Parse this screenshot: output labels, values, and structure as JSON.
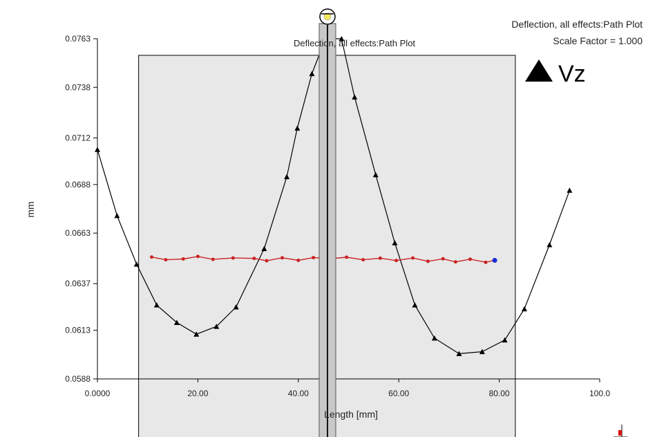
{
  "header": {
    "line1": "Deflection, all effects:Path Plot",
    "line2": "Scale Factor = 1.000"
  },
  "inner_title": "Deflection, all effects:Path Plot",
  "legend": {
    "label": "Vz"
  },
  "colors": {
    "series_main": "#000000",
    "series_path": "#cc2222",
    "path_end_marker": "#1a2bd6",
    "highlight_band": "#e8e8e8"
  },
  "chart_data": {
    "type": "line",
    "xlabel": "Length [mm]",
    "ylabel": "mm",
    "xlim": [
      0,
      100
    ],
    "ylim": [
      0.0588,
      0.0763
    ],
    "x_ticks": [
      "0.0000",
      "20.00",
      "40.00",
      "60.00",
      "80.00",
      "100.0"
    ],
    "x_tick_values": [
      0,
      20,
      40,
      60,
      80,
      100
    ],
    "y_ticks": [
      "0.0588",
      "0.0613",
      "0.0637",
      "0.0663",
      "0.0688",
      "0.0712",
      "0.0738",
      "0.0763"
    ],
    "y_tick_values": [
      0.0588,
      0.0613,
      0.0637,
      0.0663,
      0.0688,
      0.0712,
      0.0738,
      0.0763
    ],
    "highlight_x_range": [
      8.2,
      83.2
    ],
    "cursor_x": 45.8,
    "series": [
      {
        "name": "Vz",
        "marker": "triangle",
        "x": [
          0.0,
          3.9,
          7.8,
          11.8,
          15.8,
          19.7,
          23.7,
          27.6,
          33.2,
          37.7,
          39.8,
          42.7,
          45.4,
          48.6,
          51.2,
          55.4,
          59.2,
          63.2,
          67.1,
          72.0,
          76.6,
          81.1,
          85.0,
          90.0,
          94.0
        ],
        "y": [
          0.0706,
          0.0672,
          0.0647,
          0.0626,
          0.0617,
          0.0611,
          0.0615,
          0.0625,
          0.0655,
          0.0692,
          0.0717,
          0.0745,
          0.0763,
          0.0763,
          0.0733,
          0.0693,
          0.0658,
          0.0626,
          0.0609,
          0.0601,
          0.0602,
          0.0608,
          0.0624,
          0.0657,
          0.0685
        ]
      },
      {
        "name": "",
        "marker": "dot",
        "x": [
          10.8,
          13.6,
          17.1,
          20.0,
          23.0,
          27.0,
          31.2,
          33.7,
          36.8,
          40.0,
          43.0,
          46.5,
          49.6,
          52.9,
          56.3,
          59.5,
          62.8,
          65.8,
          68.8,
          71.3,
          74.2,
          77.3,
          79.1
        ],
        "y": [
          0.06507,
          0.06493,
          0.06497,
          0.0651,
          0.06495,
          0.06502,
          0.065,
          0.06488,
          0.06503,
          0.0649,
          0.06504,
          0.06499,
          0.06506,
          0.06493,
          0.06501,
          0.06489,
          0.06502,
          0.06485,
          0.06498,
          0.06482,
          0.06496,
          0.0648,
          0.0649
        ]
      }
    ]
  }
}
